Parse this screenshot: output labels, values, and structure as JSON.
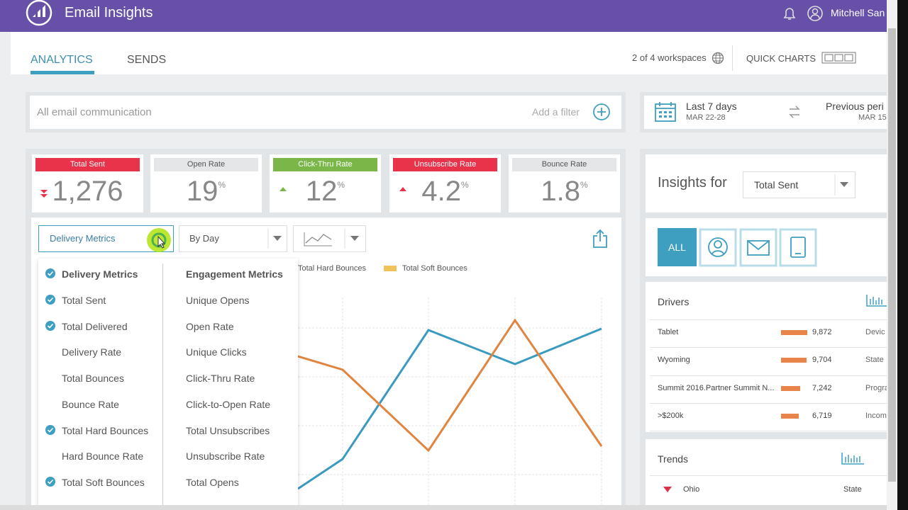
{
  "header": {
    "title": "Email Insights",
    "user": "Mitchell San"
  },
  "tabs": [
    "ANALYTICS",
    "SENDS"
  ],
  "toolbar": {
    "workspaces": "2 of 4 workspaces",
    "quick_charts": "QUICK CHARTS"
  },
  "filter": {
    "placeholder": "All email communication",
    "add": "Add a filter"
  },
  "date_range": {
    "label": "Last 7 days",
    "range": "MAR 22-28",
    "compare_label": "Previous peri",
    "compare_range": "MAR 15"
  },
  "kpis": [
    {
      "label": "Total Sent",
      "value": "1,276"
    },
    {
      "label": "Open Rate",
      "value": "19",
      "unit": "%"
    },
    {
      "label": "Click-Thru Rate",
      "value": "12",
      "unit": "%"
    },
    {
      "label": "Unsubscribe Rate",
      "value": "4.2",
      "unit": "%"
    },
    {
      "label": "Bounce Rate",
      "value": "1.8",
      "unit": "%"
    }
  ],
  "controls": {
    "metric": "Delivery Metrics",
    "period": "By Day"
  },
  "legend": [
    "Total Hard Bounces",
    "Total Soft Bounces"
  ],
  "dropdown": {
    "delivery": {
      "title": "Delivery Metrics",
      "items": [
        {
          "label": "Total Sent",
          "checked": true
        },
        {
          "label": "Total Delivered",
          "checked": true
        },
        {
          "label": "Delivery Rate",
          "checked": false
        },
        {
          "label": "Total Bounces",
          "checked": false
        },
        {
          "label": "Bounce Rate",
          "checked": false
        },
        {
          "label": "Total Hard Bounces",
          "checked": true
        },
        {
          "label": "Hard Bounce Rate",
          "checked": false
        },
        {
          "label": "Total Soft Bounces",
          "checked": true
        }
      ]
    },
    "engagement": {
      "title": "Engagement Metrics",
      "items": [
        "Unique Opens",
        "Open Rate",
        "Unique Clicks",
        "Click-Thru Rate",
        "Click-to-Open Rate",
        "Total Unsubscribes",
        "Unsubscribe Rate",
        "Total Opens"
      ]
    }
  },
  "insights": {
    "title": "Insights for",
    "selected": "Total Sent",
    "all_tab": "ALL"
  },
  "drivers": {
    "title": "Drivers",
    "rows": [
      {
        "label": "Tablet",
        "value": 9872,
        "value_label": "9,872",
        "category": "Devic"
      },
      {
        "label": "Wyoming",
        "value": 9704,
        "value_label": "9,704",
        "category": "State"
      },
      {
        "label": "Summit 2016.Partner Summit N...",
        "value": 7242,
        "value_label": "7,242",
        "category": "Progra"
      },
      {
        "label": ">$200k",
        "value": 6719,
        "value_label": "6,719",
        "category": "Incom"
      }
    ]
  },
  "trends": {
    "title": "Trends",
    "rows": [
      {
        "label": "Ohio",
        "category": "State"
      }
    ]
  }
}
